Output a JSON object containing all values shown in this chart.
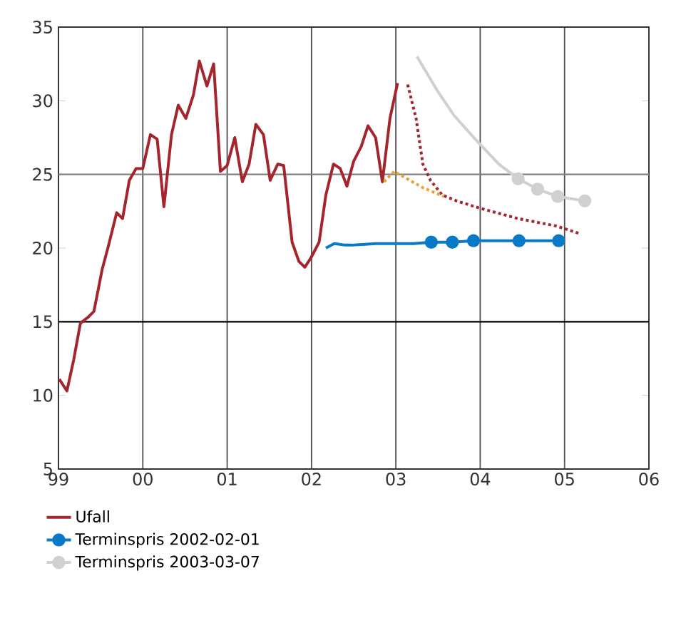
{
  "chart_data": {
    "type": "line",
    "xlim": [
      1999,
      2006
    ],
    "ylim": [
      5,
      35
    ],
    "xticks": [
      {
        "value": 1999,
        "label": "99"
      },
      {
        "value": 2000,
        "label": "00"
      },
      {
        "value": 2001,
        "label": "01"
      },
      {
        "value": 2002,
        "label": "02"
      },
      {
        "value": 2003,
        "label": "03"
      },
      {
        "value": 2004,
        "label": "04"
      },
      {
        "value": 2005,
        "label": "05"
      },
      {
        "value": 2006,
        "label": "06"
      }
    ],
    "yticks": [
      5,
      10,
      15,
      20,
      25,
      30,
      35
    ],
    "grid": "x",
    "legend": "bottom",
    "ref_lines": [
      {
        "axis": "y",
        "value": 25,
        "color": "#808080"
      },
      {
        "axis": "y",
        "value": 15,
        "color": "#000000"
      }
    ],
    "series": [
      {
        "name": "Ufall",
        "color": "#a4262c",
        "marker": "none",
        "line_style": "solid",
        "x": [
          1999.01,
          1999.1,
          1999.18,
          1999.26,
          1999.35,
          1999.42,
          1999.52,
          1999.59,
          1999.69,
          1999.76,
          1999.84,
          1999.92,
          2000.0,
          2000.09,
          2000.17,
          2000.25,
          2000.34,
          2000.42,
          2000.51,
          2000.6,
          2000.67,
          2000.76,
          2000.84,
          2000.92,
          2001.0,
          2001.09,
          2001.18,
          2001.26,
          2001.34,
          2001.43,
          2001.51,
          2001.6,
          2001.67,
          2001.77,
          2001.85,
          2001.92,
          2001.99,
          2002.09,
          2002.17,
          2002.26,
          2002.34,
          2002.42,
          2002.5,
          2002.59,
          2002.67,
          2002.76,
          2002.84,
          2002.93,
          2003.02
        ],
        "values": [
          11.1,
          10.3,
          12.4,
          14.9,
          15.3,
          15.7,
          18.6,
          20.1,
          22.4,
          22.0,
          24.6,
          25.4,
          25.4,
          27.7,
          27.4,
          22.8,
          27.7,
          29.7,
          28.8,
          30.4,
          32.7,
          31.0,
          32.5,
          25.2,
          25.6,
          27.5,
          24.5,
          25.7,
          28.4,
          27.7,
          24.6,
          25.7,
          25.6,
          20.4,
          19.1,
          18.7,
          19.3,
          20.4,
          23.6,
          25.7,
          25.4,
          24.2,
          25.9,
          26.9,
          28.3,
          27.5,
          24.5,
          28.8,
          31.2
        ]
      },
      {
        "color": "#a4262c",
        "marker": "none",
        "line_style": "dotted",
        "x": [
          2003.14,
          2003.24,
          2003.32,
          2003.41,
          2003.55,
          2003.72,
          2004.0,
          2004.45,
          2004.9,
          2005.17
        ],
        "values": [
          31.1,
          28.8,
          25.7,
          24.6,
          23.6,
          23.2,
          22.7,
          22.0,
          21.5,
          21.0
        ]
      },
      {
        "color": "#f0a030",
        "marker": "none",
        "line_style": "dotted",
        "x": [
          2002.86,
          2002.98,
          2003.32,
          2003.57
        ],
        "values": [
          24.5,
          25.2,
          24.1,
          23.5
        ]
      },
      {
        "color": "#0a7ac8",
        "marker": "none",
        "line_style": "solid",
        "x": [
          2002.17,
          2002.27,
          2002.4,
          2002.48,
          2002.76,
          2003.21,
          2003.42
        ],
        "values": [
          20.0,
          20.3,
          20.2,
          20.2,
          20.3,
          20.3,
          20.4
        ]
      },
      {
        "name": "Terminspris 2002-02-01",
        "color": "#0a7ac8",
        "marker": "circle",
        "line_style": "solid",
        "x": [
          2003.42,
          2003.67,
          2003.92,
          2004.46,
          2004.93
        ],
        "values": [
          20.4,
          20.4,
          20.5,
          20.5,
          20.5
        ]
      },
      {
        "color": "#d0d0d0",
        "marker": "none",
        "line_style": "solid",
        "x": [
          2003.25,
          2003.49,
          2003.69,
          2003.94,
          2004.22,
          2004.45
        ],
        "values": [
          33.0,
          30.7,
          29.0,
          27.4,
          25.7,
          24.7
        ]
      },
      {
        "name": "Terminspris 2003-03-07",
        "color": "#d0d0d0",
        "marker": "circle",
        "line_style": "solid",
        "x": [
          2004.45,
          2004.68,
          2004.92,
          2005.24
        ],
        "values": [
          24.7,
          24.0,
          23.5,
          23.2
        ]
      }
    ]
  }
}
